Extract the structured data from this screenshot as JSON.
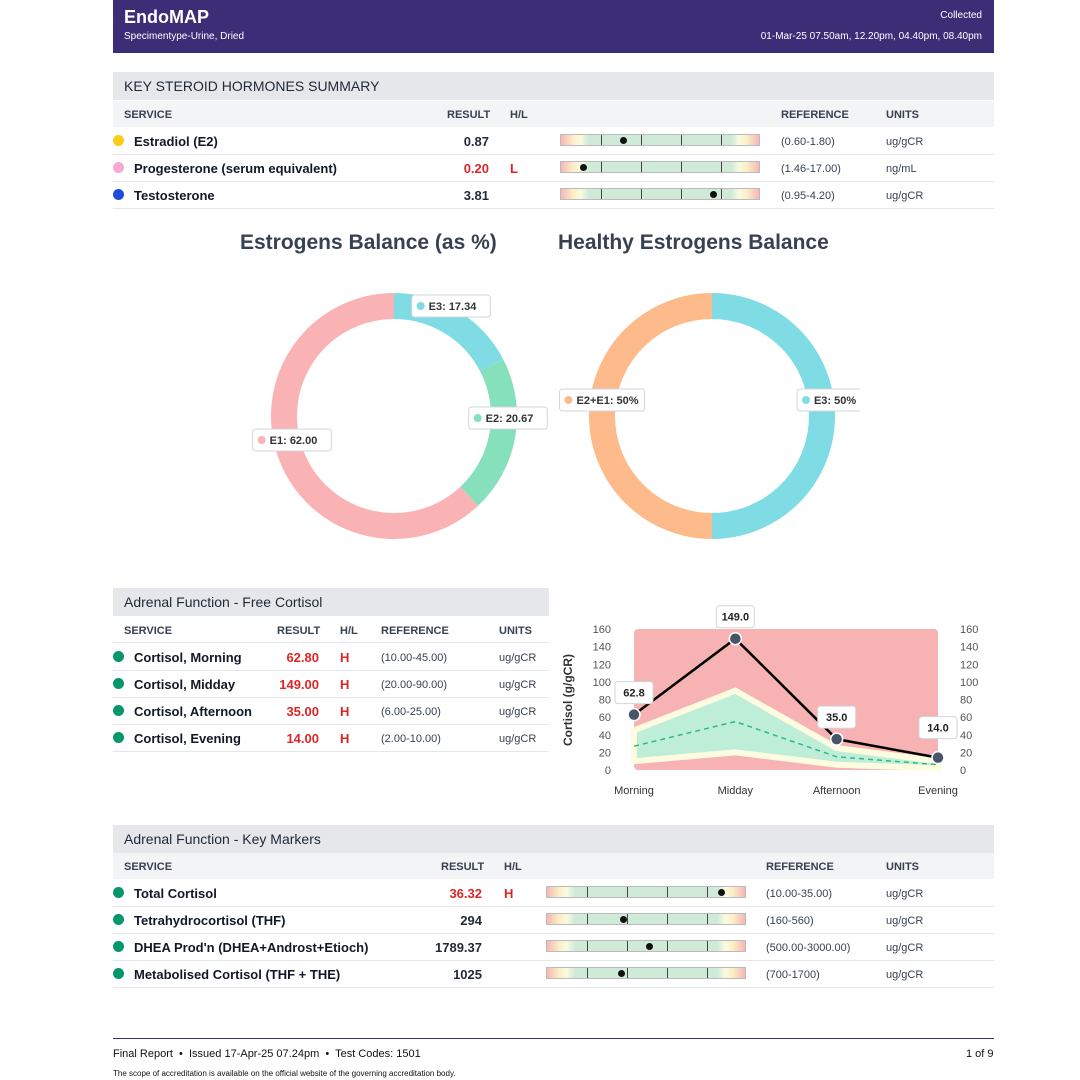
{
  "header": {
    "title": "EndoMAP",
    "specimen": "Specimentype-Urine, Dried",
    "collected_label": "Collected",
    "collected_times": "01-Mar-25 07.50am, 12.20pm, 04.40pm, 08.40pm"
  },
  "steroids": {
    "title": "KEY STEROID HORMONES SUMMARY",
    "columns": {
      "service": "SERVICE",
      "result": "RESULT",
      "hl": "H/L",
      "reference": "REFERENCE",
      "units": "UNITS"
    },
    "rows": [
      {
        "name": "Estradiol (E2)",
        "result": "0.87",
        "flag": "",
        "reference": "(0.60-1.80)",
        "units": "ug/gCR",
        "dot_color": "#facc15",
        "marker": 0.31
      },
      {
        "name": "Progesterone (serum equivalent)",
        "result": "0.20",
        "flag": "L",
        "reference": "(1.46-17.00)",
        "units": "ng/mL",
        "dot_color": "#f9a8d4",
        "marker": 0.11
      },
      {
        "name": "Testosterone",
        "result": "3.81",
        "flag": "",
        "reference": "(0.95-4.20)",
        "units": "ug/gCR",
        "dot_color": "#1d4ed8",
        "marker": 0.76
      }
    ]
  },
  "donuts": {
    "left_title": "Estrogens Balance (as %)",
    "right_title": "Healthy Estrogens Balance",
    "left": [
      {
        "label": "E3: 17.34",
        "value": 17.34,
        "color": "#7fdbe4"
      },
      {
        "label": "E2: 20.67",
        "value": 20.67,
        "color": "#86e0bc"
      },
      {
        "label": "E1: 62.00",
        "value": 62.0,
        "color": "#f9b3b5"
      }
    ],
    "right": [
      {
        "label": "E3: 50%",
        "value": 50,
        "color": "#7fdbe4"
      },
      {
        "label": "E2+E1: 50%",
        "value": 50,
        "color": "#fdbb8b"
      }
    ]
  },
  "cortisol": {
    "title": "Adrenal Function - Free Cortisol",
    "columns": {
      "service": "SERVICE",
      "result": "RESULT",
      "hl": "H/L",
      "reference": "REFERENCE",
      "units": "UNITS"
    },
    "rows": [
      {
        "name": "Cortisol, Morning",
        "result": "62.80",
        "flag": "H",
        "reference": "(10.00-45.00)",
        "units": "ug/gCR"
      },
      {
        "name": "Cortisol, Midday",
        "result": "149.00",
        "flag": "H",
        "reference": "(20.00-90.00)",
        "units": "ug/gCR"
      },
      {
        "name": "Cortisol, Afternoon",
        "result": "35.00",
        "flag": "H",
        "reference": "(6.00-25.00)",
        "units": "ug/gCR"
      },
      {
        "name": "Cortisol, Evening",
        "result": "14.00",
        "flag": "H",
        "reference": "(2.00-10.00)",
        "units": "ug/gCR"
      }
    ],
    "dot_color": "#059669"
  },
  "chart_data": {
    "type": "line",
    "ylabel": "Cortisol (g/gCR)",
    "categories": [
      "Morning",
      "Midday",
      "Afternoon",
      "Evening"
    ],
    "ylim": [
      0,
      160
    ],
    "yticks": [
      0,
      20,
      40,
      60,
      80,
      100,
      120,
      140,
      160
    ],
    "series": [
      {
        "values": [
          62.8,
          149.0,
          35.0,
          14.0
        ],
        "labels": [
          "62.8",
          "149.0",
          "35.0",
          "14.0"
        ],
        "color": "#000000"
      }
    ],
    "reference_upper": [
      45,
      90,
      25,
      10
    ],
    "reference_lower": [
      10,
      20,
      6,
      2
    ],
    "reference_mid": [
      27,
      55,
      15,
      6
    ],
    "colors": {
      "high": "#f7b3b3",
      "normal": "#bfeed8",
      "border": "#fdfbe0",
      "mid_line": "#2eb88a"
    }
  },
  "markers": {
    "title": "Adrenal Function - Key Markers",
    "columns": {
      "service": "SERVICE",
      "result": "RESULT",
      "hl": "H/L",
      "reference": "REFERENCE",
      "units": "UNITS"
    },
    "rows": [
      {
        "name": "Total Cortisol",
        "result": "36.32",
        "flag": "H",
        "reference": "(10.00-35.00)",
        "units": "ug/gCR",
        "marker": 0.87
      },
      {
        "name": "Tetrahydrocortisol (THF)",
        "result": "294",
        "flag": "",
        "reference": "(160-560)",
        "units": "ug/gCR",
        "marker": 0.38
      },
      {
        "name": "DHEA Prod'n (DHEA+Androst+Etioch)",
        "result": "1789.37",
        "flag": "",
        "reference": "(500.00-3000.00)",
        "units": "ug/gCR",
        "marker": 0.51
      },
      {
        "name": "Metabolised Cortisol (THF + THE)",
        "result": "1025",
        "flag": "",
        "reference": "(700-1700)",
        "units": "ug/gCR",
        "marker": 0.37
      }
    ],
    "dot_color": "#059669"
  },
  "footer": {
    "left": "Final Report  •  Issued 17-Apr-25 07.24pm  •  Test Codes: 1501",
    "page": "1 of 9",
    "note": "The scope of accreditation is available on the official website of the governing accreditation body."
  }
}
